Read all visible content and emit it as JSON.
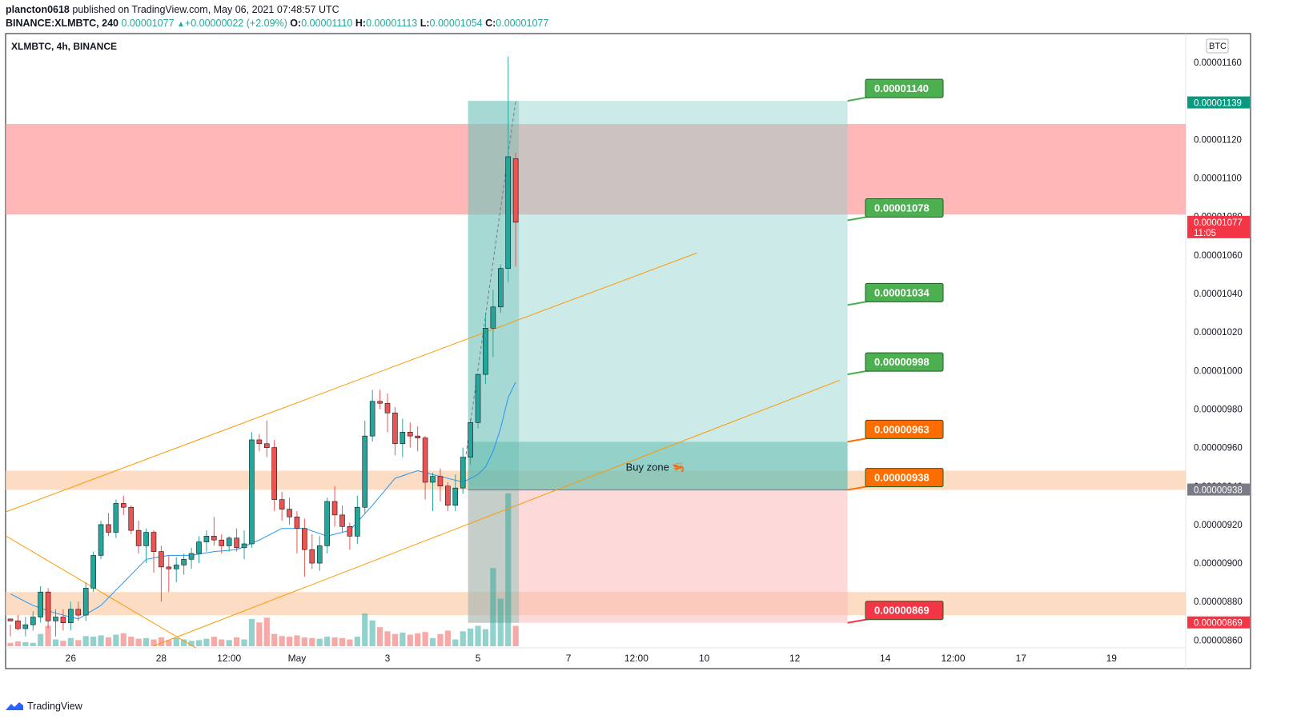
{
  "header": {
    "author": "plancton0618",
    "published_text": "published on TradingView.com, May 06, 2021 07:48:57 UTC",
    "symbol_line": "BINANCE:XLMBTC, 240",
    "last": "0.00001077",
    "change": "+0.00000022 (+2.09%)",
    "o_label": "O:",
    "o": "0.00001110",
    "h_label": "H:",
    "h": "0.00001113",
    "l_label": "L:",
    "l": "0.00001054",
    "c_label": "C:",
    "c": "0.00001077"
  },
  "footer": {
    "brand": "TradingView"
  },
  "chart_data": {
    "type": "candlestick",
    "title": "XLMBTC, 4h, BINANCE",
    "currency_badge": "BTC",
    "y_ticks": [
      "0.00001160",
      "0.00001140",
      "0.00001120",
      "0.00001100",
      "0.00001080",
      "0.00001060",
      "0.00001040",
      "0.00001020",
      "0.00001000",
      "0.00000980",
      "0.00000960",
      "0.00000940",
      "0.00000920",
      "0.00000900",
      "0.00000880",
      "0.00000860"
    ],
    "y_tick_values": [
      1160,
      1140,
      1120,
      1100,
      1080,
      1060,
      1040,
      1020,
      1000,
      980,
      960,
      940,
      920,
      900,
      880,
      860
    ],
    "ylim": [
      855,
      1165
    ],
    "x_ticks": [
      {
        "label": "26",
        "bar": 8
      },
      {
        "label": "28",
        "bar": 20
      },
      {
        "label": "12:00",
        "bar": 29
      },
      {
        "label": "May",
        "bar": 38
      },
      {
        "label": "3",
        "bar": 50
      },
      {
        "label": "5",
        "bar": 62
      },
      {
        "label": "7",
        "bar": 74
      },
      {
        "label": "12:00",
        "bar": 83
      },
      {
        "label": "10",
        "bar": 92
      },
      {
        "label": "12",
        "bar": 104
      },
      {
        "label": "14",
        "bar": 116
      },
      {
        "label": "12:00",
        "bar": 125
      },
      {
        "label": "17",
        "bar": 134
      },
      {
        "label": "19",
        "bar": 146
      }
    ],
    "price_badges": [
      {
        "label": "0.00001139",
        "value": 1139,
        "color": "#089981"
      },
      {
        "label": "0.00001077",
        "sub": "11:05",
        "value": 1077,
        "color": "#f23645"
      },
      {
        "label": "0.00000938",
        "value": 938,
        "color": "#787b86"
      },
      {
        "label": "0.00000869",
        "value": 869,
        "color": "#f23645"
      }
    ],
    "targets": [
      {
        "label": "0.00001140",
        "value": 1140,
        "color": "#4caf50"
      },
      {
        "label": "0.00001078",
        "value": 1078,
        "color": "#4caf50"
      },
      {
        "label": "0.00001034",
        "value": 1034,
        "color": "#4caf50"
      },
      {
        "label": "0.00000998",
        "value": 998,
        "color": "#4caf50"
      },
      {
        "label": "0.00000963",
        "value": 963,
        "color": "#ff6d00"
      },
      {
        "label": "0.00000938",
        "value": 938,
        "color": "#ff6d00"
      },
      {
        "label": "0.00000869",
        "value": 869,
        "color": "#f23645"
      }
    ],
    "zones": [
      {
        "name": "red-resistance",
        "from": 1081,
        "to": 1128,
        "color": "#ff9e9e"
      },
      {
        "name": "orange-support-1",
        "from": 938,
        "to": 948,
        "color": "#fbd2b0"
      },
      {
        "name": "orange-support-2",
        "from": 873,
        "to": 885,
        "color": "#fbd2b0"
      }
    ],
    "position": {
      "entry": 938,
      "target": 1140,
      "stop": 869,
      "buy_zone_top": 963,
      "start_bar": 61,
      "end_bar": 111,
      "buy_zone_label": "Buy zone 🦐"
    },
    "candles": [
      [
        871,
        868,
        862,
        870
      ],
      [
        870,
        873,
        865,
        866
      ],
      [
        866,
        872,
        862,
        868
      ],
      [
        868,
        875,
        865,
        872
      ],
      [
        872,
        888,
        869,
        885
      ],
      [
        885,
        887,
        866,
        870
      ],
      [
        870,
        876,
        862,
        872
      ],
      [
        872,
        876,
        865,
        869
      ],
      [
        869,
        880,
        865,
        876
      ],
      [
        876,
        880,
        870,
        873
      ],
      [
        873,
        890,
        870,
        887
      ],
      [
        887,
        906,
        885,
        904
      ],
      [
        904,
        922,
        902,
        920
      ],
      [
        920,
        926,
        914,
        916
      ],
      [
        916,
        933,
        913,
        931
      ],
      [
        931,
        935,
        925,
        929
      ],
      [
        929,
        930,
        915,
        917
      ],
      [
        917,
        922,
        905,
        909
      ],
      [
        909,
        918,
        900,
        916
      ],
      [
        916,
        917,
        895,
        906
      ],
      [
        906,
        909,
        880,
        898
      ],
      [
        898,
        904,
        885,
        897
      ],
      [
        897,
        903,
        890,
        899
      ],
      [
        899,
        905,
        894,
        902
      ],
      [
        902,
        908,
        897,
        905
      ],
      [
        905,
        914,
        900,
        911
      ],
      [
        911,
        917,
        906,
        914
      ],
      [
        914,
        924,
        909,
        912
      ],
      [
        912,
        915,
        905,
        909
      ],
      [
        909,
        914,
        906,
        913
      ],
      [
        913,
        918,
        906,
        908
      ],
      [
        908,
        917,
        902,
        910
      ],
      [
        910,
        968,
        908,
        964
      ],
      [
        964,
        967,
        958,
        962
      ],
      [
        962,
        974,
        955,
        960
      ],
      [
        960,
        964,
        927,
        933
      ],
      [
        933,
        937,
        922,
        928
      ],
      [
        928,
        934,
        920,
        924
      ],
      [
        924,
        927,
        905,
        918
      ],
      [
        918,
        923,
        893,
        907
      ],
      [
        907,
        915,
        897,
        900
      ],
      [
        900,
        914,
        896,
        909
      ],
      [
        909,
        934,
        905,
        932
      ],
      [
        932,
        940,
        919,
        925
      ],
      [
        925,
        930,
        916,
        919
      ],
      [
        919,
        921,
        907,
        914
      ],
      [
        914,
        935,
        910,
        929
      ],
      [
        929,
        974,
        926,
        966
      ],
      [
        966,
        990,
        963,
        984
      ],
      [
        984,
        990,
        980,
        983
      ],
      [
        983,
        988,
        968,
        978
      ],
      [
        978,
        981,
        956,
        962
      ],
      [
        962,
        975,
        955,
        968
      ],
      [
        968,
        973,
        960,
        966
      ],
      [
        966,
        971,
        958,
        965
      ],
      [
        965,
        966,
        933,
        942
      ],
      [
        942,
        947,
        927,
        945
      ],
      [
        945,
        949,
        932,
        940
      ],
      [
        940,
        942,
        927,
        930
      ],
      [
        930,
        946,
        927,
        939
      ],
      [
        939,
        960,
        936,
        955
      ],
      [
        955,
        975,
        951,
        973
      ],
      [
        973,
        996,
        970,
        998
      ],
      [
        998,
        1030,
        993,
        1022
      ],
      [
        1022,
        1042,
        1007,
        1033
      ],
      [
        1033,
        1055,
        1030,
        1053
      ],
      [
        1053,
        1163,
        1046,
        1111
      ],
      [
        1110,
        1113,
        1054,
        1077
      ]
    ],
    "volume": [
      5,
      7,
      6,
      5,
      18,
      30,
      10,
      8,
      12,
      9,
      15,
      14,
      16,
      13,
      17,
      19,
      14,
      11,
      12,
      10,
      13,
      9,
      12,
      10,
      8,
      9,
      11,
      14,
      10,
      9,
      13,
      10,
      40,
      35,
      42,
      18,
      15,
      14,
      16,
      13,
      12,
      11,
      14,
      13,
      12,
      10,
      14,
      48,
      38,
      28,
      22,
      18,
      20,
      17,
      19,
      21,
      12,
      18,
      23,
      10,
      22,
      26,
      30,
      25,
      115,
      70,
      225,
      30
    ],
    "ema": [
      [
        0,
        884
      ],
      [
        3,
        878
      ],
      [
        6,
        874
      ],
      [
        9,
        871
      ],
      [
        12,
        878
      ],
      [
        15,
        890
      ],
      [
        18,
        902
      ],
      [
        21,
        904
      ],
      [
        24,
        904
      ],
      [
        27,
        906
      ],
      [
        30,
        907
      ],
      [
        33,
        912
      ],
      [
        36,
        918
      ],
      [
        39,
        918
      ],
      [
        42,
        914
      ],
      [
        45,
        917
      ],
      [
        48,
        930
      ],
      [
        51,
        944
      ],
      [
        54,
        948
      ],
      [
        57,
        945
      ],
      [
        60,
        942
      ],
      [
        62,
        946
      ],
      [
        63,
        950
      ],
      [
        64,
        958
      ],
      [
        65,
        970
      ],
      [
        66,
        986
      ],
      [
        67,
        994
      ]
    ],
    "channel_lines": [
      {
        "x1": -1,
        "y1": 926,
        "x2": 91,
        "y2": 1061,
        "color": "#ff9800"
      },
      {
        "x1": 19,
        "y1": 857,
        "x2": 110,
        "y2": 995,
        "color": "#ff9800"
      },
      {
        "x1": -1,
        "y1": 915,
        "x2": 25,
        "y2": 855,
        "color": "#ff9800"
      }
    ]
  }
}
